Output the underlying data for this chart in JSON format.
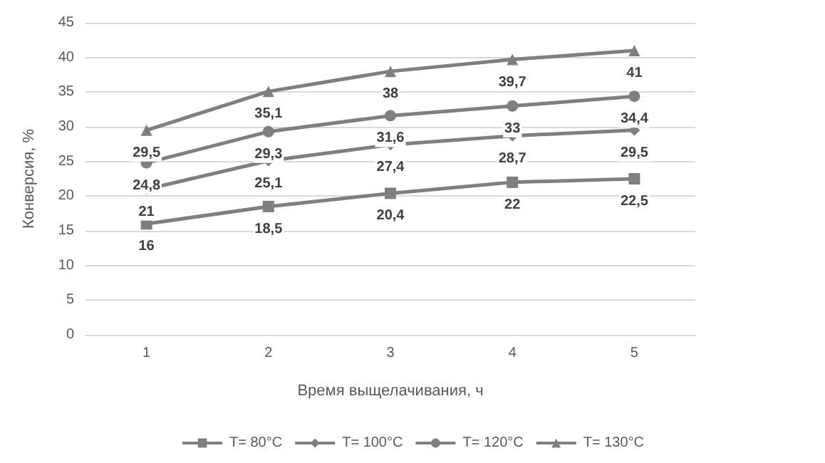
{
  "chart_data": {
    "type": "line",
    "xlabel": "Время выщелачивания, ч",
    "ylabel": "Конверсия, %",
    "categories": [
      "1",
      "2",
      "3",
      "4",
      "5"
    ],
    "series": [
      {
        "name": "T= 80°C",
        "color": "#7f7f7f",
        "marker": "square",
        "values": [
          16,
          18.5,
          20.4,
          22,
          22.5
        ],
        "value_labels": [
          "16",
          "18,5",
          "20,4",
          "22",
          "22,5"
        ]
      },
      {
        "name": "T= 100°C",
        "color": "#7f7f7f",
        "marker": "diamond",
        "values": [
          21,
          25.1,
          27.4,
          28.7,
          29.5
        ],
        "value_labels": [
          "21",
          "25,1",
          "27,4",
          "28,7",
          "29,5"
        ]
      },
      {
        "name": "T= 120°C",
        "color": "#7f7f7f",
        "marker": "circle",
        "values": [
          24.8,
          29.3,
          31.6,
          33,
          34.4
        ],
        "value_labels": [
          "24,8",
          "29,3",
          "31,6",
          "33",
          "34,4"
        ]
      },
      {
        "name": "T= 130°C",
        "color": "#7f7f7f",
        "marker": "triangle",
        "values": [
          29.5,
          35.1,
          38,
          39.7,
          41
        ],
        "value_labels": [
          "29,5",
          "35,1",
          "38",
          "39,7",
          "41"
        ]
      }
    ],
    "ylim": [
      0,
      45
    ],
    "yticks": [
      0,
      5,
      10,
      15,
      20,
      25,
      30,
      35,
      40,
      45
    ],
    "grid": "y",
    "legend": "bottom"
  }
}
